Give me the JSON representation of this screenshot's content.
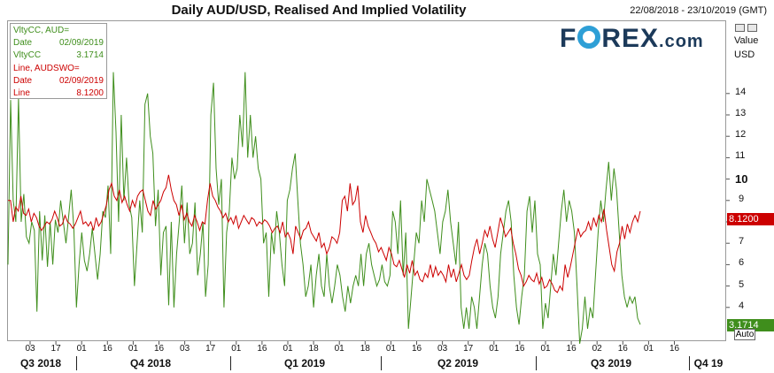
{
  "header": {
    "title": "Daily AUD/USD, Realised And Implied Volatility",
    "date_range": "22/08/2018 - 23/10/2019 (GMT)"
  },
  "brand": {
    "logo_pre": "F",
    "logo_post": "REX",
    "logo_suffix": ".com",
    "dot": "."
  },
  "legend": {
    "rows": [
      {
        "k": "VltyCC, AUD=",
        "v": "",
        "color": "green"
      },
      {
        "k": "Date",
        "v": "02/09/2019",
        "color": "green"
      },
      {
        "k": "VltyCC",
        "v": "3.1714",
        "color": "green"
      },
      {
        "k": "Line, AUDSWO=",
        "v": "",
        "color": "red"
      },
      {
        "k": "Date",
        "v": "02/09/2019",
        "color": "red"
      },
      {
        "k": "Line",
        "v": "8.1200",
        "color": "red"
      }
    ]
  },
  "axis": {
    "value_label": "Value",
    "unit_label": "USD",
    "auto_label": "Auto",
    "y_ticks": [
      "14",
      "13",
      "12",
      "11",
      "10",
      "9",
      "8",
      "7",
      "6",
      "5",
      "4"
    ],
    "bold_tick": "10",
    "x_ticks": [
      "03",
      "17",
      "01",
      "16",
      "01",
      "16",
      "03",
      "17",
      "01",
      "16",
      "01",
      "18",
      "01",
      "18",
      "01",
      "16",
      "03",
      "17",
      "01",
      "16",
      "01",
      "16",
      "02",
      "16",
      "01",
      "16"
    ],
    "quarters": [
      "Q3 2018",
      "Q4 2018",
      "Q1 2019",
      "Q2 2019",
      "Q3 2019",
      "Q4 19"
    ]
  },
  "tags": {
    "red": {
      "text": "8.1200",
      "color": "#cc0000"
    },
    "green": {
      "text": "3.1714",
      "color": "#3f8e1c"
    }
  },
  "chart_data": {
    "type": "line",
    "ylim": [
      2,
      15.3
    ],
    "series": [
      {
        "name": "VltyCC, AUD=",
        "color": "#3f8e1c",
        "values": [
          6.0,
          13.7,
          9.0,
          8.0,
          13.8,
          8.0,
          9.3,
          7.3,
          7.0,
          8.0,
          7.6,
          3.8,
          8.5,
          6.2,
          8.3,
          5.9,
          8.0,
          6.0,
          8.1,
          7.5,
          9.0,
          8.0,
          7.0,
          8.2,
          9.5,
          7.7,
          4.0,
          6.0,
          7.5,
          6.2,
          5.7,
          6.5,
          7.7,
          6.5,
          5.3,
          6.5,
          8.5,
          8.2,
          9.7,
          6.5,
          15.0,
          12.2,
          8.0,
          13.0,
          9.0,
          11.0,
          8.8,
          8.2,
          5.0,
          7.0,
          9.0,
          7.5,
          13.5,
          14.0,
          12.0,
          11.2,
          7.8,
          9.5,
          5.5,
          7.5,
          7.8,
          4.1,
          8.0,
          4.0,
          6.5,
          8.0,
          9.7,
          7.0,
          8.9,
          6.5,
          7.0,
          8.9,
          5.5,
          6.5,
          8.0,
          4.5,
          6.0,
          13.0,
          14.5,
          10.5,
          8.8,
          10.0,
          4.0,
          7.5,
          8.5,
          11.0,
          10.0,
          10.5,
          13.0,
          11.5,
          15.0,
          11.0,
          13.0,
          11.0,
          12.0,
          10.5,
          10.0,
          7.0,
          7.5,
          4.5,
          7.5,
          6.5,
          8.5,
          7.5,
          6.0,
          5.0,
          9.0,
          9.5,
          10.5,
          11.2,
          9.0,
          7.0,
          6.0,
          4.5,
          5.0,
          6.0,
          4.0,
          5.5,
          6.5,
          5.0,
          4.5,
          6.5,
          5.0,
          4.2,
          5.0,
          6.0,
          5.5,
          4.5,
          3.8,
          5.0,
          4.2,
          5.0,
          5.5,
          5.0,
          6.5,
          5.0,
          6.5,
          7.0,
          6.0,
          5.5,
          5.0,
          5.3,
          6.0,
          5.2,
          5.0,
          5.5,
          8.5,
          8.0,
          6.5,
          9.0,
          5.5,
          7.5,
          3.0,
          4.5,
          6.0,
          7.5,
          7.0,
          9.0,
          8.0,
          10.0,
          9.5,
          9.0,
          8.5,
          7.5,
          6.5,
          8.0,
          8.5,
          9.5,
          8.0,
          7.0,
          6.0,
          8.0,
          4.0,
          3.0,
          4.0,
          3.0,
          4.5,
          4.0,
          3.0,
          4.5,
          6.0,
          7.0,
          6.5,
          5.0,
          4.0,
          3.5,
          4.5,
          6.5,
          7.5,
          8.5,
          9.0,
          8.0,
          5.5,
          4.0,
          3.2,
          4.5,
          5.5,
          8.5,
          9.2,
          7.5,
          9.0,
          6.5,
          6.0,
          3.0,
          4.2,
          3.5,
          5.0,
          6.5,
          5.5,
          7.0,
          8.5,
          9.5,
          8.0,
          9.0,
          8.5,
          7.5,
          5.0,
          2.3,
          3.0,
          4.5,
          3.0,
          4.0,
          3.5,
          5.5,
          7.5,
          9.0,
          8.0,
          9.5,
          10.8,
          9.0,
          10.5,
          9.5,
          7.5,
          5.5,
          4.5,
          4.0,
          4.5,
          4.2,
          4.5,
          3.5,
          3.2
        ]
      },
      {
        "name": "Line, AUDSWO=",
        "color": "#cc0000",
        "values": [
          9.0,
          9.0,
          8.0,
          8.7,
          8.5,
          9.2,
          8.4,
          8.3,
          8.6,
          8.0,
          8.4,
          8.2,
          7.8,
          7.6,
          7.8,
          8.0,
          7.9,
          8.1,
          8.5,
          8.2,
          7.8,
          7.9,
          8.3,
          8.0,
          7.9,
          7.7,
          7.9,
          8.2,
          8.5,
          7.9,
          8.0,
          7.8,
          8.0,
          7.6,
          8.2,
          7.8,
          8.0,
          8.4,
          8.8,
          9.5,
          9.8,
          9.2,
          9.0,
          9.5,
          8.9,
          9.2,
          8.8,
          8.5,
          9.0,
          8.7,
          9.2,
          9.4,
          9.5,
          9.0,
          8.5,
          8.3,
          9.0,
          8.6,
          8.8,
          9.0,
          9.4,
          9.6,
          10.2,
          9.5,
          9.0,
          8.8,
          8.3,
          8.8,
          8.1,
          8.4,
          8.0,
          7.8,
          8.3,
          8.0,
          7.6,
          8.0,
          7.9,
          9.0,
          9.8,
          9.2,
          9.0,
          8.7,
          8.5,
          8.2,
          8.4,
          8.0,
          8.2,
          7.9,
          8.3,
          7.7,
          8.0,
          8.3,
          8.1,
          7.9,
          8.2,
          8.1,
          7.8,
          8.0,
          7.9,
          8.1,
          8.0,
          7.8,
          7.5,
          7.7,
          7.8,
          7.5,
          8.0,
          7.3,
          7.5,
          7.2,
          6.5,
          7.8,
          7.5,
          7.2,
          7.6,
          7.7,
          8.0,
          7.5,
          7.3,
          7.1,
          7.5,
          6.8,
          7.0,
          6.5,
          6.8,
          7.3,
          7.2,
          7.0,
          7.5,
          9.0,
          9.2,
          8.5,
          9.8,
          8.8,
          9.0,
          9.7,
          8.0,
          7.5,
          8.3,
          7.8,
          7.5,
          7.2,
          7.0,
          6.6,
          6.8,
          6.5,
          6.2,
          6.8,
          6.5,
          6.0,
          5.9,
          6.2,
          5.8,
          5.4,
          6.0,
          5.6,
          6.2,
          5.5,
          5.7,
          5.3,
          5.2,
          5.6,
          5.4,
          6.0,
          5.4,
          5.9,
          5.5,
          5.7,
          5.5,
          5.2,
          6.0,
          5.4,
          5.8,
          5.2,
          5.6,
          6.0,
          5.5,
          5.3,
          5.5,
          6.2,
          6.8,
          7.2,
          6.5,
          7.0,
          7.6,
          7.3,
          7.8,
          7.2,
          6.8,
          7.5,
          8.2,
          7.8,
          7.3,
          7.5,
          7.7,
          7.0,
          6.5,
          5.8,
          5.5,
          5.0,
          5.2,
          5.5,
          5.3,
          5.2,
          5.6,
          5.1,
          5.4,
          4.9,
          5.0,
          5.3,
          5.1,
          4.8,
          4.7,
          5.0,
          4.8,
          6.0,
          5.4,
          5.9,
          6.5,
          7.1,
          7.7,
          7.3,
          7.5,
          7.6,
          8.0,
          7.6,
          8.2,
          7.8,
          8.3,
          8.0,
          8.6,
          7.6,
          6.8,
          6.0,
          5.7,
          6.6,
          7.0,
          7.8,
          7.2,
          7.9,
          7.5,
          8.0,
          8.3,
          8.0,
          8.5
        ]
      }
    ]
  }
}
